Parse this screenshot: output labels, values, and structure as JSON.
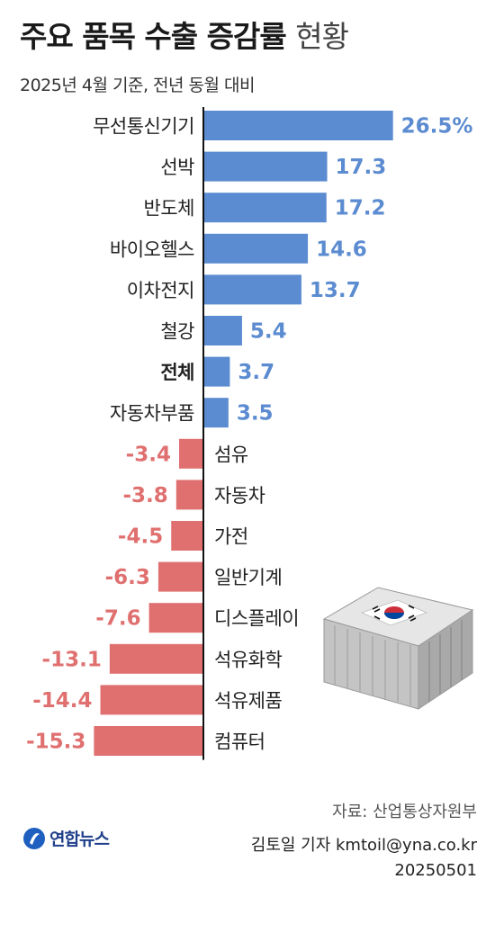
{
  "title_main": "주요 품목 수출 증감률",
  "title_light": "현황",
  "subtitle": "2025년 4월 기준, 전년 동월 대비",
  "source": "자료: 산업통상자원부",
  "byline": "김토일 기자 kmtoil@yna.co.kr",
  "date": "20250501",
  "logo_text": "연합뉴스",
  "colors": {
    "positive": "#5b8bd0",
    "negative": "#e07070"
  },
  "chart_data": {
    "type": "bar",
    "orientation": "horizontal",
    "unit": "%",
    "categories": [
      "무선통신기기",
      "선박",
      "반도체",
      "바이오헬스",
      "이차전지",
      "철강",
      "전체",
      "자동차부품",
      "섬유",
      "자동차",
      "가전",
      "일반기계",
      "디스플레이",
      "석유화학",
      "석유제품",
      "컴퓨터"
    ],
    "values": [
      26.5,
      17.3,
      17.2,
      14.6,
      13.7,
      5.4,
      3.7,
      3.5,
      -3.4,
      -3.8,
      -4.5,
      -6.3,
      -7.6,
      -13.1,
      -14.4,
      -15.3
    ],
    "value_labels": [
      "26.5%",
      "17.3",
      "17.2",
      "14.6",
      "13.7",
      "5.4",
      "3.7",
      "3.5",
      "-3.4",
      "-3.8",
      "-4.5",
      "-6.3",
      "-7.6",
      "-13.1",
      "-14.4",
      "-15.3"
    ],
    "bold_category": "전체"
  }
}
